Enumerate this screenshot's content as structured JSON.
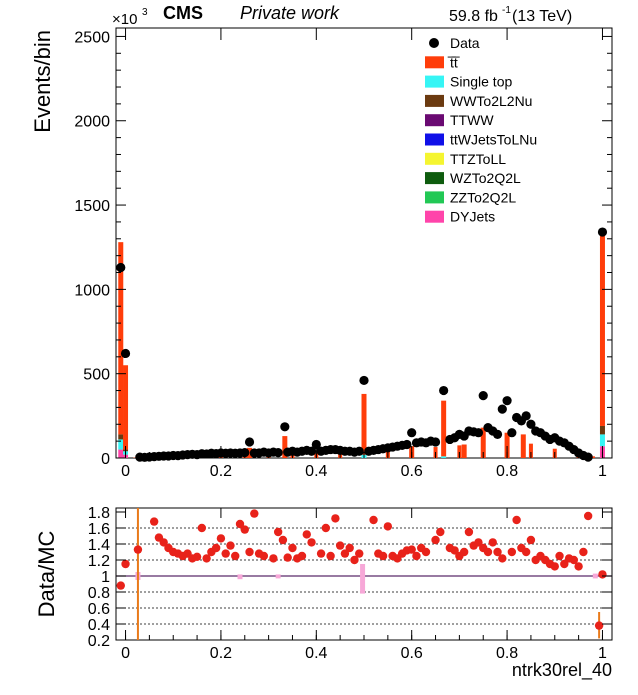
{
  "header": {
    "cms": "CMS",
    "private": "Private work",
    "lumi": "59.8 fb",
    "lumi_sup": "-1",
    "energy": " (13 TeV)",
    "multiplier_base": "×10",
    "multiplier_exp": "3"
  },
  "chart_data": [
    {
      "type": "bar",
      "panel": "main",
      "ylabel": "Events/bin",
      "xlim": [
        -0.02,
        1.02
      ],
      "ylim": [
        0,
        2550
      ],
      "y_unit_note": "values in units of 10^3",
      "xticks": [
        0,
        0.2,
        0.4,
        0.6,
        0.8,
        1
      ],
      "xtick_labels": [
        "0",
        "0.2",
        "0.4",
        "0.6",
        "0.8",
        "1"
      ],
      "yticks": [
        0,
        500,
        1000,
        1500,
        2000,
        2500
      ],
      "ytick_labels": [
        "0",
        "500",
        "1000",
        "1500",
        "2000",
        "2500"
      ],
      "legend_position": "top-right",
      "legend": [
        {
          "name": "Data",
          "kind": "marker",
          "color": "#000000"
        },
        {
          "name": "t̅t̅",
          "kind": "box",
          "color": "#ff3d0a"
        },
        {
          "name": "Single top",
          "kind": "box",
          "color": "#36f5f5"
        },
        {
          "name": "WWTo2L2Nu",
          "kind": "box",
          "color": "#6b3a10"
        },
        {
          "name": "TTWW",
          "kind": "box",
          "color": "#6a0a72"
        },
        {
          "name": "ttWJetsToLNu",
          "kind": "box",
          "color": "#1010e8"
        },
        {
          "name": "TTZToLL",
          "kind": "box",
          "color": "#f5f530"
        },
        {
          "name": "WZTo2Q2L",
          "kind": "box",
          "color": "#0e5c0e"
        },
        {
          "name": "ZZTo2Q2L",
          "kind": "box",
          "color": "#22c855"
        },
        {
          "name": "DYJets",
          "kind": "box",
          "color": "#ff44aa"
        }
      ],
      "stack_order": [
        "DYJets",
        "ZZTo2Q2L",
        "WZTo2Q2L",
        "TTZToLL",
        "ttWJetsToLNu",
        "TTWW",
        "WWTo2L2Nu",
        "Single top",
        "t̅t̅"
      ],
      "mc_bins": [
        {
          "x": -0.01,
          "DYJets": 50,
          "Single top": 60,
          "WWTo2L2Nu": 30,
          "tt": 1140
        },
        {
          "x": 0.0,
          "DYJets": 20,
          "Single top": 20,
          "WWTo2L2Nu": 10,
          "tt": 500
        },
        {
          "x": 0.26,
          "tt": 60
        },
        {
          "x": 0.334,
          "tt": 130
        },
        {
          "x": 0.5,
          "Single top": 20,
          "tt": 360
        },
        {
          "x": 0.6,
          "tt": 70
        },
        {
          "x": 0.667,
          "Single top": 10,
          "tt": 330
        },
        {
          "x": 0.71,
          "tt": 80
        },
        {
          "x": 0.75,
          "tt": 180
        },
        {
          "x": 0.8,
          "tt": 150
        },
        {
          "x": 0.834,
          "tt": 140
        },
        {
          "x": 1.0,
          "DYJets": 70,
          "Single top": 70,
          "WWTo2L2Nu": 50,
          "tt": 1140
        }
      ],
      "mc_continuum": {
        "x": [
          0.02,
          0.05,
          0.1,
          0.15,
          0.2,
          0.25,
          0.3,
          0.35,
          0.4,
          0.45,
          0.5,
          0.55,
          0.6,
          0.65,
          0.7,
          0.75,
          0.8,
          0.85,
          0.9,
          0.95,
          0.98
        ],
        "tt": [
          2,
          4,
          8,
          12,
          18,
          20,
          24,
          28,
          30,
          35,
          40,
          45,
          55,
          65,
          75,
          90,
          95,
          85,
          55,
          25,
          10
        ]
      },
      "data_points": {
        "x": [
          -0.01,
          0.0,
          0.03,
          0.04,
          0.05,
          0.06,
          0.07,
          0.08,
          0.09,
          0.1,
          0.11,
          0.12,
          0.13,
          0.14,
          0.15,
          0.16,
          0.17,
          0.18,
          0.19,
          0.2,
          0.21,
          0.22,
          0.23,
          0.24,
          0.25,
          0.26,
          0.27,
          0.28,
          0.29,
          0.3,
          0.31,
          0.32,
          0.334,
          0.34,
          0.35,
          0.36,
          0.37,
          0.38,
          0.39,
          0.4,
          0.41,
          0.42,
          0.43,
          0.44,
          0.45,
          0.46,
          0.47,
          0.48,
          0.49,
          0.5,
          0.51,
          0.52,
          0.53,
          0.54,
          0.55,
          0.56,
          0.57,
          0.58,
          0.59,
          0.6,
          0.61,
          0.62,
          0.63,
          0.64,
          0.65,
          0.667,
          0.68,
          0.69,
          0.7,
          0.71,
          0.72,
          0.73,
          0.74,
          0.75,
          0.76,
          0.77,
          0.78,
          0.79,
          0.8,
          0.81,
          0.82,
          0.83,
          0.84,
          0.85,
          0.86,
          0.87,
          0.88,
          0.89,
          0.9,
          0.91,
          0.92,
          0.93,
          0.94,
          0.95,
          0.96,
          0.97,
          1.0
        ],
        "y": [
          1130,
          620,
          5,
          4,
          6,
          8,
          10,
          12,
          12,
          15,
          14,
          18,
          20,
          22,
          20,
          25,
          24,
          28,
          26,
          30,
          28,
          30,
          28,
          30,
          32,
          95,
          30,
          30,
          35,
          30,
          35,
          32,
          185,
          35,
          40,
          35,
          40,
          45,
          40,
          80,
          40,
          45,
          50,
          50,
          45,
          40,
          40,
          35,
          40,
          460,
          40,
          45,
          50,
          55,
          60,
          65,
          70,
          75,
          80,
          150,
          90,
          95,
          90,
          100,
          95,
          400,
          110,
          120,
          140,
          130,
          160,
          155,
          150,
          370,
          180,
          160,
          140,
          290,
          340,
          150,
          240,
          220,
          250,
          200,
          160,
          150,
          130,
          110,
          120,
          100,
          90,
          70,
          50,
          30,
          15,
          5,
          1340
        ]
      }
    },
    {
      "type": "scatter",
      "panel": "ratio",
      "ylabel": "Data/MC",
      "xlabel": "ntrk30rel_40",
      "xlim": [
        -0.02,
        1.02
      ],
      "ylim": [
        0.2,
        1.85
      ],
      "xticks": [
        0,
        0.2,
        0.4,
        0.6,
        0.8,
        1
      ],
      "xtick_labels": [
        "0",
        "0.2",
        "0.4",
        "0.6",
        "0.8",
        "1"
      ],
      "yticks": [
        0.2,
        0.4,
        0.6,
        0.8,
        1,
        1.2,
        1.4,
        1.6,
        1.8
      ],
      "ytick_labels": [
        "0.2",
        "0.4",
        "0.6",
        "0.8",
        "1",
        "1.2",
        "1.4",
        "1.6",
        "1.8"
      ],
      "grid_dashed": [
        0.4,
        0.6,
        0.8,
        1.2,
        1.4,
        1.6
      ],
      "reference_line": 1,
      "ratio_points": {
        "x": [
          -0.01,
          0.0,
          0.026,
          0.06,
          0.07,
          0.08,
          0.09,
          0.1,
          0.11,
          0.12,
          0.13,
          0.14,
          0.15,
          0.16,
          0.17,
          0.18,
          0.19,
          0.2,
          0.21,
          0.22,
          0.23,
          0.24,
          0.25,
          0.26,
          0.27,
          0.28,
          0.29,
          0.31,
          0.32,
          0.33,
          0.34,
          0.35,
          0.36,
          0.37,
          0.38,
          0.39,
          0.41,
          0.42,
          0.43,
          0.44,
          0.45,
          0.46,
          0.47,
          0.48,
          0.49,
          0.52,
          0.53,
          0.54,
          0.55,
          0.56,
          0.57,
          0.58,
          0.59,
          0.6,
          0.61,
          0.62,
          0.63,
          0.65,
          0.66,
          0.68,
          0.69,
          0.7,
          0.71,
          0.72,
          0.73,
          0.74,
          0.75,
          0.76,
          0.77,
          0.78,
          0.79,
          0.81,
          0.82,
          0.83,
          0.84,
          0.85,
          0.86,
          0.87,
          0.88,
          0.89,
          0.9,
          0.91,
          0.92,
          0.93,
          0.94,
          0.95,
          0.96,
          0.97,
          0.993,
          1.0
        ],
        "y": [
          0.88,
          1.15,
          1.33,
          1.68,
          1.48,
          1.42,
          1.35,
          1.3,
          1.28,
          1.25,
          1.28,
          1.22,
          1.24,
          1.6,
          1.22,
          1.3,
          1.35,
          1.47,
          1.28,
          1.38,
          1.25,
          1.65,
          1.58,
          1.3,
          1.78,
          1.28,
          1.25,
          1.22,
          1.55,
          1.45,
          1.23,
          1.35,
          1.22,
          1.25,
          1.52,
          1.42,
          1.28,
          1.6,
          1.25,
          1.72,
          1.38,
          1.28,
          1.35,
          1.2,
          1.28,
          1.7,
          1.28,
          1.25,
          1.62,
          1.25,
          1.22,
          1.28,
          1.32,
          1.33,
          1.25,
          1.35,
          1.3,
          1.45,
          1.55,
          1.35,
          1.32,
          1.25,
          1.3,
          1.55,
          1.38,
          1.42,
          1.35,
          1.3,
          1.42,
          1.3,
          1.22,
          1.3,
          1.7,
          1.35,
          1.3,
          1.45,
          1.2,
          1.25,
          1.2,
          1.15,
          1.12,
          1.25,
          1.15,
          1.22,
          1.2,
          1.12,
          1.3,
          1.75,
          0.38,
          1.02
        ]
      },
      "mc_uncertainty_bands": [
        {
          "x": 0.026,
          "lo": 0.95,
          "hi": 1.05
        },
        {
          "x": 0.24,
          "lo": 0.96,
          "hi": 1.02
        },
        {
          "x": 0.32,
          "lo": 0.97,
          "hi": 1.02
        },
        {
          "x": 0.497,
          "lo": 0.78,
          "hi": 1.15
        },
        {
          "x": 0.985,
          "lo": 0.97,
          "hi": 1.03
        }
      ],
      "error_bars": [
        {
          "x": 0.026,
          "lo": 0.2,
          "hi": 1.85
        },
        {
          "x": 0.993,
          "lo": 0.22,
          "hi": 0.55
        }
      ]
    }
  ]
}
